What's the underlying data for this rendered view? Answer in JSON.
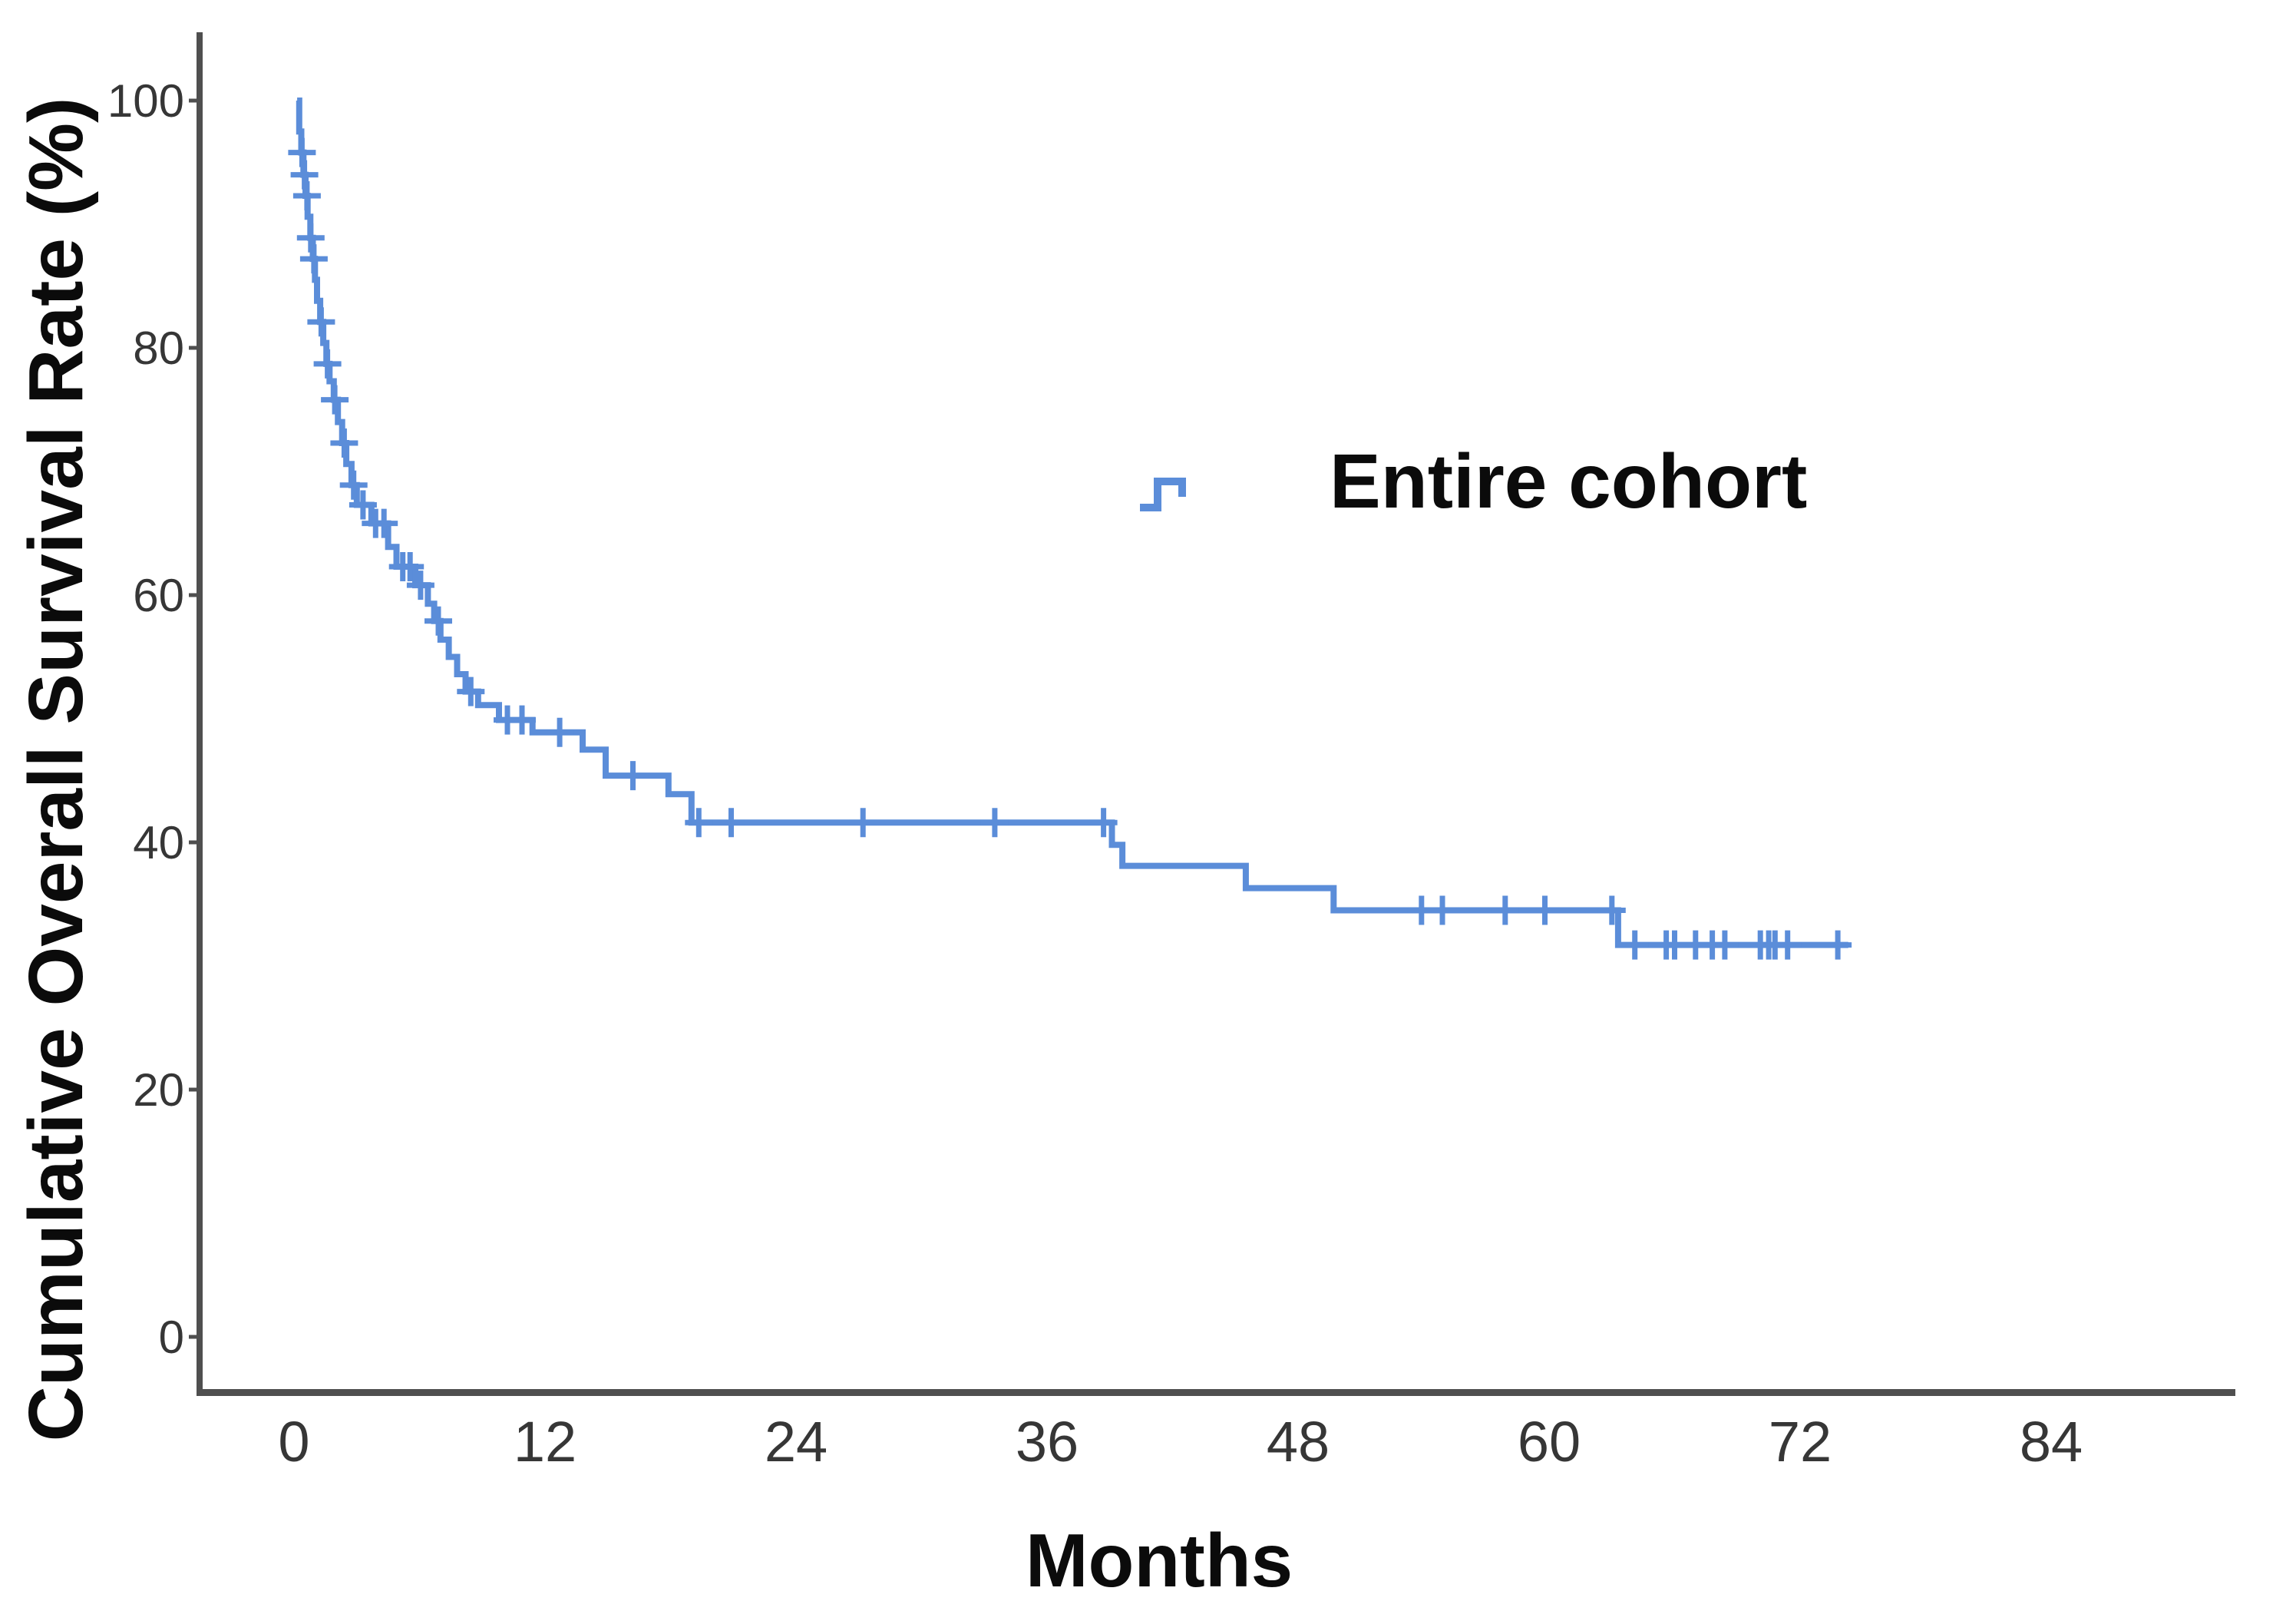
{
  "chart_data": {
    "type": "line",
    "subtype": "kaplan_meier_step_curve",
    "title": "",
    "xlabel": "Months",
    "ylabel": "Cumulative Overall Survival Rate (%)",
    "grid": false,
    "background_color": "#ffffff",
    "axis_color": "#4f4f4f",
    "tick_label_color": "#363636",
    "xlim": [
      0,
      84
    ],
    "ylim": [
      0,
      100
    ],
    "x_ticks": [
      0,
      12,
      24,
      36,
      48,
      60,
      72,
      84
    ],
    "y_ticks": [
      0,
      20,
      40,
      60,
      80,
      100
    ],
    "legend_position": "upper-right-inside",
    "series": [
      {
        "name": "Entire cohort",
        "color": "#5b8dd9",
        "curve_end_month": 74.3,
        "steps": [
          [
            0.15,
            100
          ],
          [
            0.25,
            97.5
          ],
          [
            0.35,
            95.8
          ],
          [
            0.45,
            94.0
          ],
          [
            0.55,
            92.3
          ],
          [
            0.65,
            90.6
          ],
          [
            0.78,
            88.9
          ],
          [
            0.9,
            87.2
          ],
          [
            1.0,
            85.5
          ],
          [
            1.1,
            83.8
          ],
          [
            1.25,
            82.1
          ],
          [
            1.4,
            80.4
          ],
          [
            1.55,
            78.7
          ],
          [
            1.7,
            77.3
          ],
          [
            1.9,
            75.8
          ],
          [
            2.1,
            74.0
          ],
          [
            2.3,
            72.3
          ],
          [
            2.5,
            70.6
          ],
          [
            2.75,
            68.9
          ],
          [
            3.0,
            67.3
          ],
          [
            3.7,
            65.8
          ],
          [
            4.5,
            63.9
          ],
          [
            4.9,
            62.3
          ],
          [
            5.8,
            60.8
          ],
          [
            6.4,
            59.3
          ],
          [
            6.7,
            57.9
          ],
          [
            7.0,
            56.4
          ],
          [
            7.4,
            55.0
          ],
          [
            7.8,
            53.6
          ],
          [
            8.2,
            52.2
          ],
          [
            8.8,
            51.1
          ],
          [
            9.8,
            49.9
          ],
          [
            11.4,
            48.9
          ],
          [
            13.8,
            47.5
          ],
          [
            14.9,
            45.4
          ],
          [
            17.9,
            43.9
          ],
          [
            19.0,
            41.6
          ],
          [
            39.1,
            39.8
          ],
          [
            39.6,
            38.1
          ],
          [
            45.5,
            36.3
          ],
          [
            49.7,
            34.5
          ],
          [
            63.3,
            31.7
          ]
        ],
        "censor_times": [
          0.38,
          0.5,
          0.62,
          0.8,
          0.95,
          1.3,
          1.6,
          1.95,
          2.4,
          2.85,
          3.3,
          3.9,
          4.3,
          5.2,
          5.55,
          6.05,
          6.9,
          8.45,
          10.2,
          10.9,
          12.7,
          16.2,
          19.35,
          20.9,
          27.2,
          33.5,
          38.7,
          53.9,
          54.9,
          57.9,
          59.8,
          63.0,
          64.1,
          65.6,
          66.0,
          67.0,
          67.8,
          68.4,
          70.1,
          70.5,
          70.8,
          71.4,
          73.8
        ]
      }
    ]
  }
}
